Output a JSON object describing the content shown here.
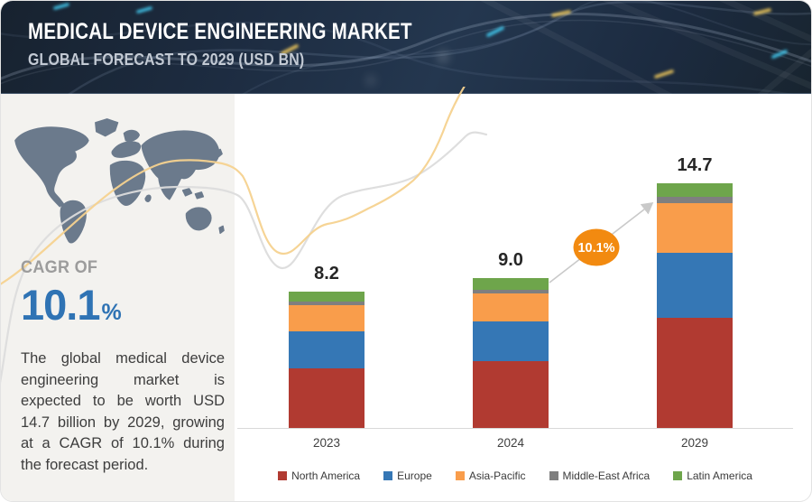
{
  "header": {
    "title": "MEDICAL DEVICE ENGINEERING MARKET",
    "subtitle": "GLOBAL FORECAST TO 2029 (USD BN)"
  },
  "sidebar": {
    "cagr_caption": "CAGR OF",
    "cagr_value": "10.1",
    "cagr_unit": "%",
    "description": "The global medical device engineering market is expected to be worth USD 14.7 billion by 2029, growing at a CAGR of 10.1% during the forecast period."
  },
  "chart_data": {
    "type": "bar",
    "stacked": true,
    "title": "MEDICAL DEVICE ENGINEERING MARKET",
    "subtitle": "GLOBAL FORECAST TO 2029 (USD BN)",
    "unit": "USD BN",
    "categories": [
      "2023",
      "2024",
      "2029"
    ],
    "totals_display": [
      "8.2",
      "9.0",
      "14.7"
    ],
    "cagr_label": "10.1%",
    "series": [
      {
        "name": "North America",
        "color": "#b13a31",
        "values": [
          3.6,
          4.0,
          6.6
        ]
      },
      {
        "name": "Europe",
        "color": "#3577b5",
        "values": [
          2.2,
          2.4,
          3.9
        ]
      },
      {
        "name": "Asia-Pacific",
        "color": "#f99d4b",
        "values": [
          1.6,
          1.7,
          3.0
        ]
      },
      {
        "name": "Middle-East Africa",
        "color": "#7f7f7f",
        "values": [
          0.2,
          0.2,
          0.4
        ]
      },
      {
        "name": "Latin America",
        "color": "#6ea54b",
        "values": [
          0.6,
          0.7,
          0.8
        ]
      }
    ],
    "ylim": [
      0,
      15
    ],
    "grid": false,
    "legend_position": "bottom"
  },
  "colors": {
    "accent_blue": "#2f73b4",
    "accent_orange": "#f28a10",
    "header_bg": "#1d2c41",
    "sidebar_bg": "#f3f2ef",
    "axis_line": "#d9d9d9",
    "map_fill": "#6b7a8c",
    "curve_orange": "#f5d28f",
    "curve_gray": "#dcdcdc"
  }
}
